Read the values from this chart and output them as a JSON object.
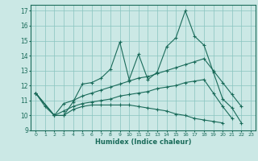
{
  "xlabel": "Humidex (Indice chaleur)",
  "bg_color": "#cbe8e5",
  "grid_color": "#88c4bf",
  "line_color": "#1a6b5a",
  "xlim": [
    -0.5,
    23.5
  ],
  "ylim": [
    9,
    17.4
  ],
  "yticks": [
    9,
    10,
    11,
    12,
    13,
    14,
    15,
    16,
    17
  ],
  "xticks": [
    0,
    1,
    2,
    3,
    4,
    5,
    6,
    7,
    8,
    9,
    10,
    11,
    12,
    13,
    14,
    15,
    16,
    17,
    18,
    19,
    20,
    21,
    22,
    23
  ],
  "line1_x": [
    0,
    1,
    2,
    3,
    4,
    5,
    6,
    7,
    8,
    9,
    10,
    11,
    12,
    13,
    14,
    15,
    16,
    17,
    18,
    19,
    20,
    21,
    22
  ],
  "line1_y": [
    11.5,
    10.6,
    10.0,
    10.0,
    10.9,
    12.1,
    12.2,
    12.5,
    13.1,
    14.9,
    12.4,
    14.1,
    12.4,
    12.9,
    14.6,
    15.2,
    17.0,
    15.3,
    14.7,
    12.9,
    11.1,
    10.5,
    9.5
  ],
  "line2_x": [
    0,
    2,
    3,
    4,
    5,
    6,
    7,
    8,
    9,
    10,
    11,
    12,
    13,
    14,
    15,
    16,
    17,
    18,
    19,
    20,
    21,
    22
  ],
  "line2_y": [
    11.5,
    10.0,
    10.8,
    11.0,
    11.3,
    11.5,
    11.7,
    11.9,
    12.1,
    12.3,
    12.5,
    12.6,
    12.8,
    13.0,
    13.2,
    13.4,
    13.6,
    13.8,
    13.0,
    12.2,
    11.4,
    10.6
  ],
  "line3_x": [
    0,
    2,
    3,
    4,
    5,
    6,
    7,
    8,
    9,
    10,
    11,
    12,
    13,
    14,
    15,
    16,
    17,
    18,
    19,
    20,
    21
  ],
  "line3_y": [
    11.5,
    10.0,
    10.3,
    10.6,
    10.8,
    10.9,
    11.0,
    11.1,
    11.3,
    11.4,
    11.5,
    11.6,
    11.8,
    11.9,
    12.0,
    12.2,
    12.3,
    12.4,
    11.5,
    10.6,
    9.8
  ],
  "line4_x": [
    0,
    2,
    3,
    4,
    5,
    6,
    7,
    8,
    9,
    10,
    11,
    12,
    13,
    14,
    15,
    16,
    17,
    18,
    19,
    20
  ],
  "line4_y": [
    11.5,
    10.0,
    10.0,
    10.4,
    10.6,
    10.7,
    10.7,
    10.7,
    10.7,
    10.7,
    10.6,
    10.5,
    10.4,
    10.3,
    10.1,
    10.0,
    9.8,
    9.7,
    9.6,
    9.5
  ]
}
